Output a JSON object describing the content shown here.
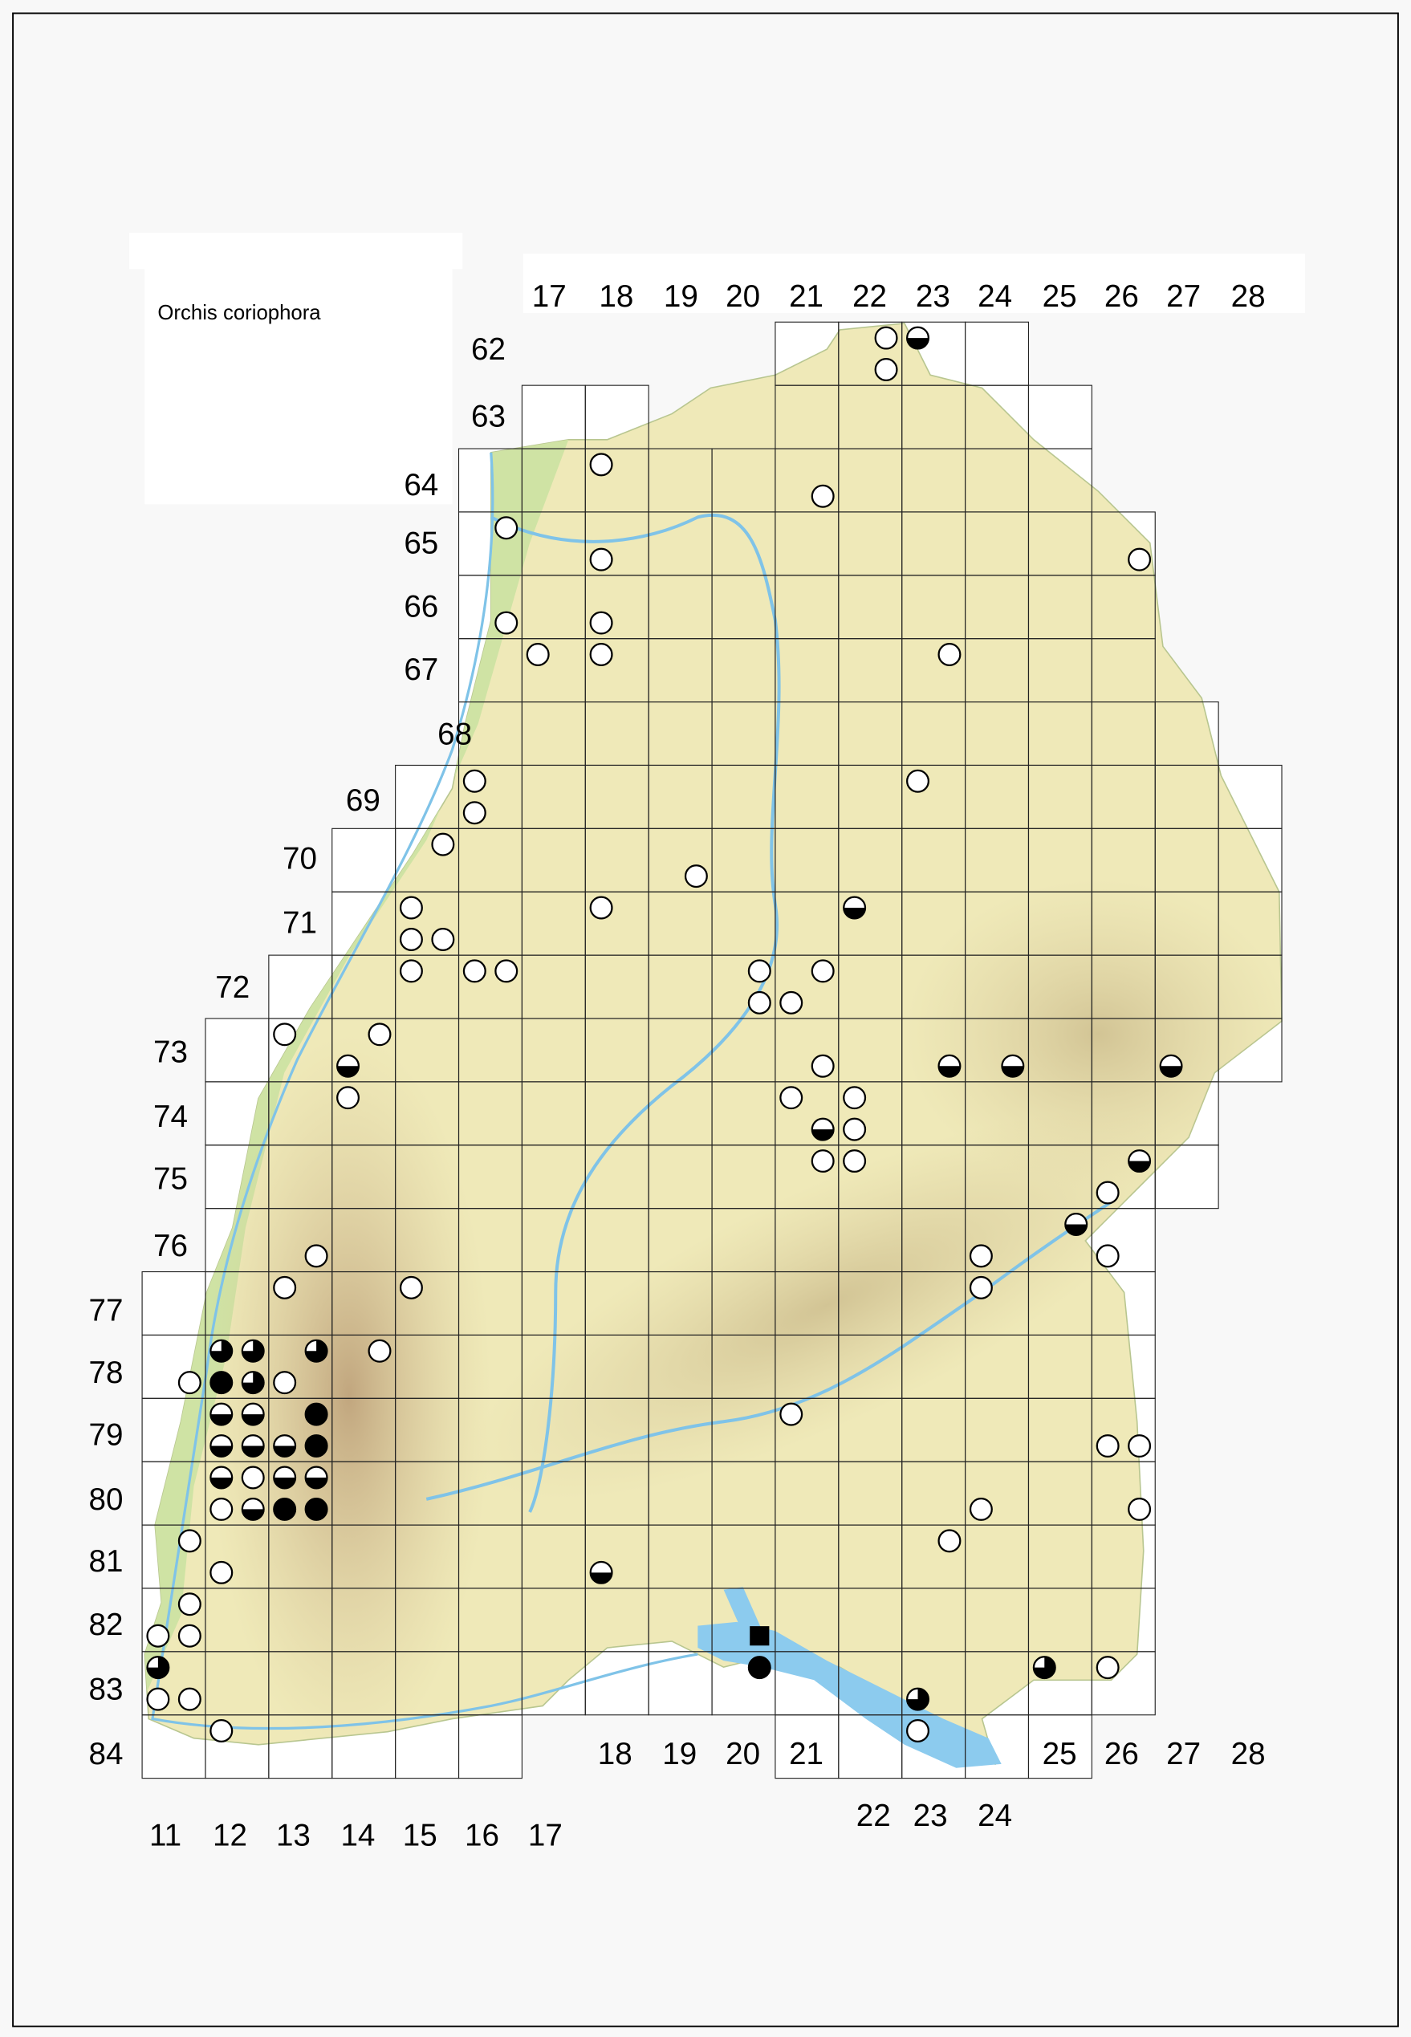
{
  "title": "Orchis coriophora",
  "colors": {
    "land": "#efe9b8",
    "lowland": "#cfe3a4",
    "mountain": "#c9b48a",
    "water": "#8ccbee",
    "grid": "#222222",
    "marker": "#000000"
  },
  "row_labels": [
    "62",
    "63",
    "64",
    "65",
    "66",
    "67",
    "68",
    "69",
    "70",
    "71",
    "72",
    "73",
    "74",
    "75",
    "76",
    "77",
    "78",
    "79",
    "80",
    "81",
    "82",
    "83",
    "84"
  ],
  "column_labels_top": [
    "17",
    "18",
    "19",
    "20",
    "21",
    "22",
    "23",
    "24",
    "25",
    "26",
    "27",
    "28"
  ],
  "column_labels_bottom": [
    "11",
    "12",
    "13",
    "14",
    "15",
    "16",
    "17",
    "18",
    "19",
    "20",
    "21",
    "22",
    "23",
    "24",
    "25",
    "26",
    "27",
    "28"
  ],
  "symbols": {
    "open": "open-circle",
    "half": "half-filled-circle",
    "three_quarter": "three-quarter-filled-circle",
    "full": "filled-circle",
    "square": "filled-square"
  },
  "records": [
    {
      "col": 22,
      "row": 62,
      "q": 2,
      "s": "open"
    },
    {
      "col": 23,
      "row": 62,
      "q": 1,
      "s": "half"
    },
    {
      "col": 22,
      "row": 62,
      "q": 4,
      "s": "open"
    },
    {
      "col": 18,
      "row": 64,
      "q": 1,
      "s": "open"
    },
    {
      "col": 21,
      "row": 64,
      "q": 4,
      "s": "open"
    },
    {
      "col": 16,
      "row": 65,
      "q": 2,
      "s": "open"
    },
    {
      "col": 18,
      "row": 65,
      "q": 3,
      "s": "open"
    },
    {
      "col": 26,
      "row": 65,
      "q": 4,
      "s": "open"
    },
    {
      "col": 16,
      "row": 66,
      "q": 4,
      "s": "open"
    },
    {
      "col": 18,
      "row": 66,
      "q": 3,
      "s": "open"
    },
    {
      "col": 17,
      "row": 67,
      "q": 1,
      "s": "open"
    },
    {
      "col": 18,
      "row": 67,
      "q": 1,
      "s": "open"
    },
    {
      "col": 23,
      "row": 67,
      "q": 2,
      "s": "open"
    },
    {
      "col": 16,
      "row": 69,
      "q": 1,
      "s": "open"
    },
    {
      "col": 16,
      "row": 69,
      "q": 3,
      "s": "open"
    },
    {
      "col": 23,
      "row": 69,
      "q": 1,
      "s": "open"
    },
    {
      "col": 15,
      "row": 70,
      "q": 2,
      "s": "open"
    },
    {
      "col": 19,
      "row": 70,
      "q": 4,
      "s": "open"
    },
    {
      "col": 18,
      "row": 71,
      "q": 1,
      "s": "open"
    },
    {
      "col": 22,
      "row": 71,
      "q": 1,
      "s": "half"
    },
    {
      "col": 15,
      "row": 71,
      "q": 1,
      "s": "open"
    },
    {
      "col": 15,
      "row": 71,
      "q": 3,
      "s": "open"
    },
    {
      "col": 15,
      "row": 71,
      "q": 4,
      "s": "open"
    },
    {
      "col": 15,
      "row": 72,
      "q": 1,
      "s": "open"
    },
    {
      "col": 16,
      "row": 72,
      "q": 1,
      "s": "open"
    },
    {
      "col": 16,
      "row": 72,
      "q": 2,
      "s": "open"
    },
    {
      "col": 20,
      "row": 72,
      "q": 2,
      "s": "open"
    },
    {
      "col": 21,
      "row": 72,
      "q": 2,
      "s": "open"
    },
    {
      "col": 20,
      "row": 72,
      "q": 4,
      "s": "open"
    },
    {
      "col": 21,
      "row": 72,
      "q": 3,
      "s": "open"
    },
    {
      "col": 13,
      "row": 73,
      "q": 1,
      "s": "open"
    },
    {
      "col": 14,
      "row": 73,
      "q": 2,
      "s": "open"
    },
    {
      "col": 14,
      "row": 73,
      "q": 3,
      "s": "half"
    },
    {
      "col": 21,
      "row": 73,
      "q": 4,
      "s": "open"
    },
    {
      "col": 23,
      "row": 73,
      "q": 4,
      "s": "half"
    },
    {
      "col": 24,
      "row": 73,
      "q": 4,
      "s": "half"
    },
    {
      "col": 27,
      "row": 73,
      "q": 3,
      "s": "half"
    },
    {
      "col": 14,
      "row": 74,
      "q": 1,
      "s": "open"
    },
    {
      "col": 21,
      "row": 74,
      "q": 1,
      "s": "open"
    },
    {
      "col": 21,
      "row": 74,
      "q": 4,
      "s": "half"
    },
    {
      "col": 22,
      "row": 74,
      "q": 1,
      "s": "open"
    },
    {
      "col": 22,
      "row": 74,
      "q": 3,
      "s": "open"
    },
    {
      "col": 21,
      "row": 75,
      "q": 2,
      "s": "open"
    },
    {
      "col": 22,
      "row": 75,
      "q": 1,
      "s": "open"
    },
    {
      "col": 26,
      "row": 75,
      "q": 2,
      "s": "half"
    },
    {
      "col": 26,
      "row": 75,
      "q": 3,
      "s": "open"
    },
    {
      "col": 25,
      "row": 76,
      "q": 2,
      "s": "half"
    },
    {
      "col": 13,
      "row": 76,
      "q": 4,
      "s": "open"
    },
    {
      "col": 26,
      "row": 76,
      "q": 3,
      "s": "open"
    },
    {
      "col": 24,
      "row": 76,
      "q": 3,
      "s": "open"
    },
    {
      "col": 13,
      "row": 77,
      "q": 1,
      "s": "open"
    },
    {
      "col": 15,
      "row": 77,
      "q": 1,
      "s": "open"
    },
    {
      "col": 24,
      "row": 77,
      "q": 1,
      "s": "open"
    },
    {
      "col": 12,
      "row": 78,
      "q": 1,
      "s": "three_quarter"
    },
    {
      "col": 12,
      "row": 78,
      "q": 2,
      "s": "three_quarter"
    },
    {
      "col": 13,
      "row": 78,
      "q": 2,
      "s": "three_quarter"
    },
    {
      "col": 14,
      "row": 78,
      "q": 2,
      "s": "open"
    },
    {
      "col": 11,
      "row": 78,
      "q": 4,
      "s": "open"
    },
    {
      "col": 12,
      "row": 78,
      "q": 3,
      "s": "full"
    },
    {
      "col": 12,
      "row": 78,
      "q": 4,
      "s": "three_quarter"
    },
    {
      "col": 13,
      "row": 78,
      "q": 3,
      "s": "open"
    },
    {
      "col": 13,
      "row": 79,
      "q": 2,
      "s": "full"
    },
    {
      "col": 12,
      "row": 79,
      "q": 1,
      "s": "half"
    },
    {
      "col": 12,
      "row": 79,
      "q": 2,
      "s": "half"
    },
    {
      "col": 12,
      "row": 79,
      "q": 3,
      "s": "half"
    },
    {
      "col": 12,
      "row": 79,
      "q": 4,
      "s": "half"
    },
    {
      "col": 13,
      "row": 79,
      "q": 3,
      "s": "half"
    },
    {
      "col": 13,
      "row": 79,
      "q": 4,
      "s": "full"
    },
    {
      "col": 21,
      "row": 79,
      "q": 1,
      "s": "open"
    },
    {
      "col": 26,
      "row": 79,
      "q": 3,
      "s": "open"
    },
    {
      "col": 26,
      "row": 79,
      "q": 4,
      "s": "open"
    },
    {
      "col": 12,
      "row": 80,
      "q": 1,
      "s": "half"
    },
    {
      "col": 12,
      "row": 80,
      "q": 2,
      "s": "open"
    },
    {
      "col": 13,
      "row": 80,
      "q": 1,
      "s": "half"
    },
    {
      "col": 13,
      "row": 80,
      "q": 2,
      "s": "half"
    },
    {
      "col": 12,
      "row": 80,
      "q": 3,
      "s": "open"
    },
    {
      "col": 12,
      "row": 80,
      "q": 4,
      "s": "half"
    },
    {
      "col": 13,
      "row": 80,
      "q": 3,
      "s": "full"
    },
    {
      "col": 13,
      "row": 80,
      "q": 4,
      "s": "full"
    },
    {
      "col": 24,
      "row": 80,
      "q": 3,
      "s": "open"
    },
    {
      "col": 26,
      "row": 80,
      "q": 4,
      "s": "open"
    },
    {
      "col": 11,
      "row": 81,
      "q": 2,
      "s": "open"
    },
    {
      "col": 23,
      "row": 81,
      "q": 2,
      "s": "open"
    },
    {
      "col": 12,
      "row": 81,
      "q": 3,
      "s": "open"
    },
    {
      "col": 18,
      "row": 81,
      "q": 3,
      "s": "half"
    },
    {
      "col": 11,
      "row": 82,
      "q": 2,
      "s": "open"
    },
    {
      "col": 11,
      "row": 82,
      "q": 3,
      "s": "open"
    },
    {
      "col": 11,
      "row": 82,
      "q": 4,
      "s": "open"
    },
    {
      "col": 20,
      "row": 82,
      "q": 4,
      "s": "square"
    },
    {
      "col": 20,
      "row": 83,
      "q": 2,
      "s": "full"
    },
    {
      "col": 11,
      "row": 83,
      "q": 1,
      "s": "three_quarter"
    },
    {
      "col": 25,
      "row": 83,
      "q": 1,
      "s": "three_quarter"
    },
    {
      "col": 26,
      "row": 83,
      "q": 1,
      "s": "open"
    },
    {
      "col": 11,
      "row": 83,
      "q": 3,
      "s": "open"
    },
    {
      "col": 11,
      "row": 83,
      "q": 4,
      "s": "open"
    },
    {
      "col": 23,
      "row": 83,
      "q": 3,
      "s": "three_quarter"
    },
    {
      "col": 23,
      "row": 84,
      "q": 1,
      "s": "open"
    },
    {
      "col": 12,
      "row": 84,
      "q": 1,
      "s": "open"
    }
  ]
}
